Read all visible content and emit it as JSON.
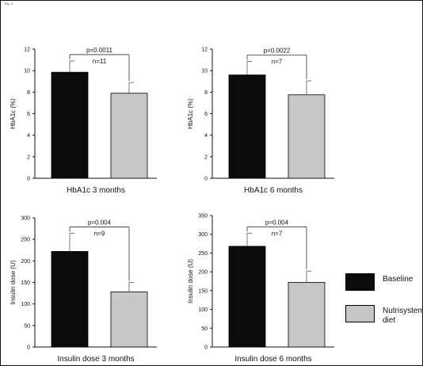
{
  "figure_label": "Fig. 3",
  "colors": {
    "baseline": "#0b0b0b",
    "diet": "#c7c7c7",
    "axis": "#111111",
    "frame": "#111111"
  },
  "legend": [
    {
      "label": "Baseline",
      "color": "#0b0b0b"
    },
    {
      "label": "Nutrisystem diet",
      "color": "#c7c7c7"
    }
  ],
  "chart_data": [
    {
      "type": "bar",
      "title": "HbA1c 3 months",
      "ylabel": "HbA1c (%)",
      "ylim": [
        0,
        12
      ],
      "yticks": [
        0,
        2,
        4,
        6,
        8,
        10,
        12
      ],
      "categories": [
        "Baseline",
        "Nutrisystem diet"
      ],
      "values": [
        9.85,
        7.9
      ],
      "errors": [
        1.05,
        1.0
      ],
      "significance": "p=0.0011",
      "n_label": "n=11"
    },
    {
      "type": "bar",
      "title": "HbA1c 6 months",
      "ylabel": "HbA1c (%)",
      "ylim": [
        0,
        12
      ],
      "yticks": [
        0,
        2,
        4,
        6,
        8,
        10,
        12
      ],
      "categories": [
        "Baseline",
        "Nutrisystem diet"
      ],
      "values": [
        9.6,
        7.75
      ],
      "errors": [
        1.25,
        1.3
      ],
      "significance": "p=0.0022",
      "n_label": "n=7"
    },
    {
      "type": "bar",
      "title": "Insulin dose 3 months",
      "ylabel": "Insulin dose (U)",
      "ylim": [
        0,
        300
      ],
      "yticks": [
        0,
        50,
        100,
        150,
        200,
        250,
        300
      ],
      "categories": [
        "Baseline",
        "Nutrisystem diet"
      ],
      "values": [
        222,
        128
      ],
      "errors": [
        42,
        22
      ],
      "significance": "p=0.004",
      "n_label": "n=9"
    },
    {
      "type": "bar",
      "title": "Insulin dose 6 months",
      "ylabel": "Insulin dose (U)",
      "ylim": [
        0,
        350
      ],
      "yticks": [
        0,
        50,
        100,
        150,
        200,
        250,
        300,
        350
      ],
      "categories": [
        "Baseline",
        "Nutrisystem diet"
      ],
      "values": [
        268,
        172
      ],
      "errors": [
        35,
        30
      ],
      "significance": "p=0.004",
      "n_label": "n=7"
    }
  ]
}
